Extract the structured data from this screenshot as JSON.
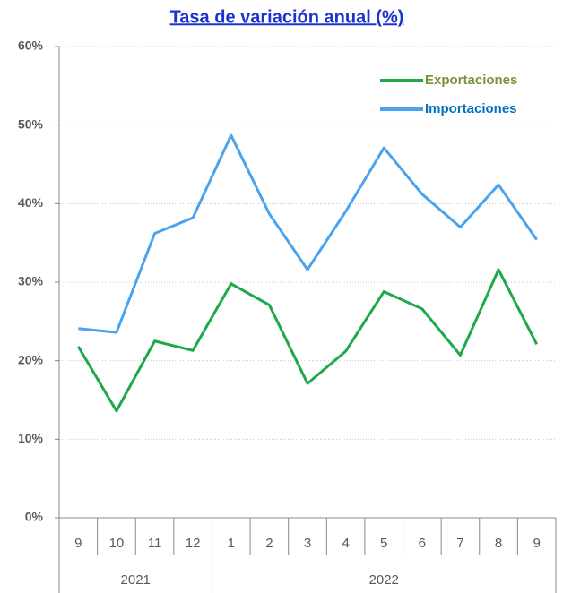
{
  "chart_data": {
    "type": "line",
    "title": "Tasa de variación anual (%)",
    "title_color": "#1a33cc",
    "groups": [
      {
        "label": "2021",
        "categories": [
          "9",
          "10",
          "11",
          "12"
        ]
      },
      {
        "label": "2022",
        "categories": [
          "1",
          "2",
          "3",
          "4",
          "5",
          "6",
          "7",
          "8",
          "9"
        ]
      }
    ],
    "series": [
      {
        "name": "Exportaciones",
        "color": "#1fa84a",
        "legend_text_color": "#77933c",
        "values": [
          21.8,
          13.6,
          22.5,
          21.3,
          29.8,
          27.1,
          17.1,
          21.2,
          28.8,
          26.6,
          20.7,
          31.6,
          22.1
        ]
      },
      {
        "name": "Importaciones",
        "color": "#4aa3ee",
        "legend_text_color": "#0070c0",
        "values": [
          24.1,
          23.6,
          36.2,
          38.2,
          48.7,
          38.7,
          31.6,
          39.0,
          47.1,
          41.2,
          37.0,
          42.4,
          35.4
        ]
      }
    ],
    "ylim": [
      0,
      60
    ],
    "yticks": [
      {
        "value": 0,
        "label": "0%"
      },
      {
        "value": 10,
        "label": "10%"
      },
      {
        "value": 20,
        "label": "20%"
      },
      {
        "value": 30,
        "label": "30%"
      },
      {
        "value": 40,
        "label": "40%"
      },
      {
        "value": 50,
        "label": "50%"
      },
      {
        "value": 60,
        "label": "60%"
      }
    ],
    "grid": true,
    "legend": "upper right"
  }
}
